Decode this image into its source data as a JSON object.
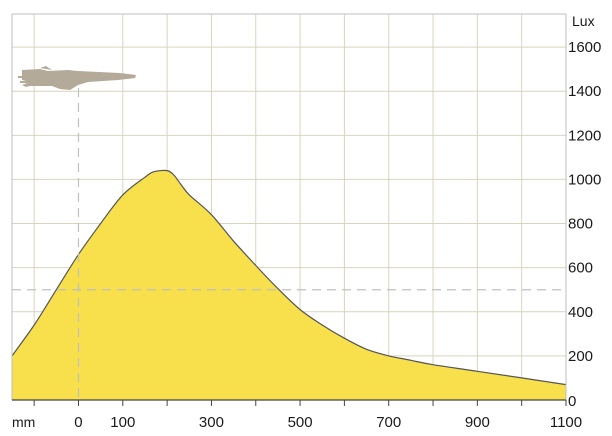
{
  "chart_data": {
    "type": "area",
    "x_unit": "mm",
    "y_unit": "Lux",
    "xlim": [
      -150,
      1100
    ],
    "ylim": [
      0,
      1750
    ],
    "x_ticks": [
      0,
      100,
      300,
      500,
      700,
      900,
      1100
    ],
    "x_minor_ticks": [
      -100,
      200,
      400,
      600,
      800,
      1000
    ],
    "y_ticks": [
      0,
      200,
      400,
      600,
      800,
      1000,
      1200,
      1400,
      1600
    ],
    "grid": true,
    "reference_lines": {
      "x": 0,
      "y": 500
    },
    "fill_color": "#f7e04b",
    "line_color": "#555555",
    "grid_color": "#d9d4be",
    "ref_line_color": "#c0c0c0",
    "silhouette_color": "#b3aa99",
    "icon": "aircraft-silhouette-icon",
    "x": [
      -150,
      -100,
      -50,
      0,
      50,
      100,
      150,
      170,
      200,
      215,
      230,
      250,
      300,
      350,
      400,
      450,
      500,
      550,
      600,
      650,
      700,
      750,
      800,
      900,
      1000,
      1100
    ],
    "y": [
      200,
      340,
      500,
      660,
      800,
      930,
      1010,
      1035,
      1040,
      1020,
      980,
      930,
      840,
      720,
      610,
      505,
      410,
      340,
      280,
      230,
      200,
      180,
      160,
      130,
      100,
      70
    ]
  }
}
